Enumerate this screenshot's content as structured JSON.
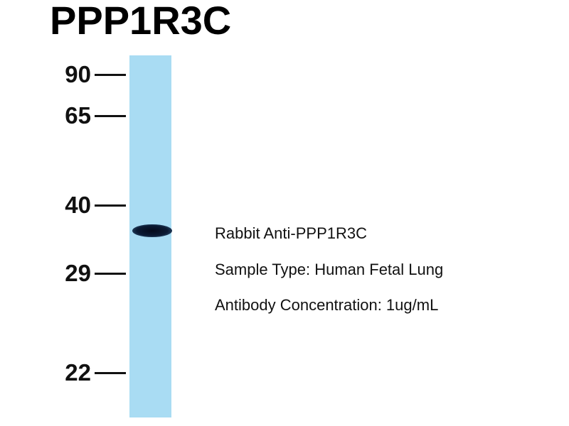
{
  "title": "PPP1R3C",
  "markers": [
    {
      "label": "90"
    },
    {
      "label": "65"
    },
    {
      "label": "40"
    },
    {
      "label": "29"
    },
    {
      "label": "22"
    }
  ],
  "info": {
    "antibody": "Rabbit Anti-PPP1R3C",
    "sample": "Sample Type: Human Fetal Lung",
    "concentration": "Antibody Concentration: 1ug/mL"
  },
  "colors": {
    "lane": "#a9dcf3",
    "band": "#0b1a33"
  }
}
